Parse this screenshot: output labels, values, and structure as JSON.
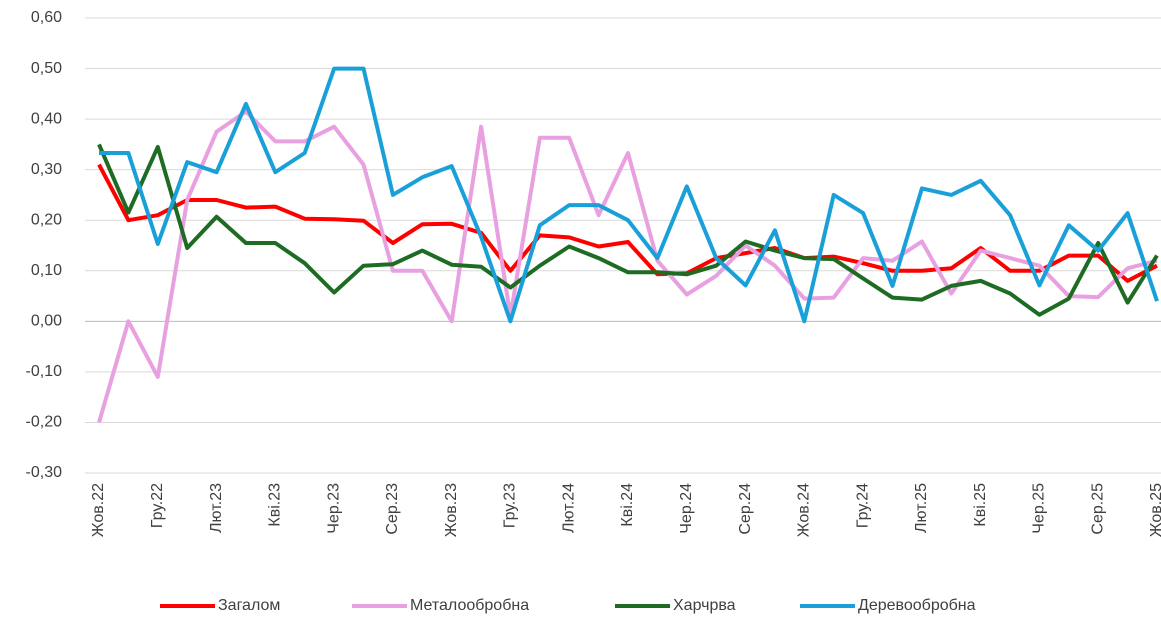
{
  "chart_data": {
    "type": "line",
    "categories": [
      "Жов.22",
      null,
      "Гру.22",
      null,
      "Лют.23",
      null,
      "Кві.23",
      null,
      "Чер.23",
      null,
      "Сер.23",
      null,
      "Жов.23",
      null,
      "Гру.23",
      null,
      "Лют.24",
      null,
      "Кві.24",
      null,
      "Чер.24",
      null,
      "Сер.24",
      null,
      "Жов.24",
      null,
      "Гру.24",
      null,
      "Лют.25",
      null,
      "Кві.25",
      null,
      "Чер.25",
      null,
      "Сер.25",
      null,
      "Жов.25"
    ],
    "series": [
      {
        "name": "Загалом",
        "color": "#ff0000",
        "values": [
          0.31,
          0.2,
          0.21,
          0.24,
          0.24,
          0.225,
          0.227,
          0.203,
          0.202,
          0.199,
          0.155,
          0.192,
          0.193,
          0.175,
          0.1,
          0.17,
          0.166,
          0.148,
          0.157,
          0.093,
          0.095,
          0.125,
          0.135,
          0.145,
          0.125,
          0.128,
          0.115,
          0.1,
          0.1,
          0.105,
          0.145,
          0.1,
          0.1,
          0.13,
          0.13,
          0.08,
          0.11
        ]
      },
      {
        "name": "Металообробна",
        "color": "#e8a0e0",
        "values": [
          -0.2,
          0.0,
          -0.11,
          0.24,
          0.375,
          0.415,
          0.356,
          0.356,
          0.385,
          0.31,
          0.1,
          0.1,
          0.0,
          0.385,
          0.01,
          0.363,
          0.363,
          0.21,
          0.333,
          0.12,
          0.053,
          0.09,
          0.15,
          0.11,
          0.045,
          0.047,
          0.125,
          0.12,
          0.158,
          0.055,
          0.14,
          0.125,
          0.11,
          0.05,
          0.048,
          0.105,
          0.12
        ]
      },
      {
        "name": "Харчрва",
        "color": "#1e6b23",
        "values": [
          0.35,
          0.215,
          0.345,
          0.145,
          0.207,
          0.155,
          0.155,
          0.115,
          0.057,
          0.11,
          0.113,
          0.14,
          0.112,
          0.108,
          0.067,
          0.11,
          0.148,
          0.125,
          0.097,
          0.097,
          0.093,
          0.11,
          0.158,
          0.14,
          0.125,
          0.123,
          0.085,
          0.047,
          0.043,
          0.07,
          0.08,
          0.055,
          0.013,
          0.045,
          0.155,
          0.037,
          0.13
        ]
      },
      {
        "name": "Деревообробна",
        "color": "#1aa0d8",
        "values": [
          0.333,
          0.333,
          0.153,
          0.315,
          0.295,
          0.43,
          0.295,
          0.333,
          0.5,
          0.5,
          0.25,
          0.285,
          0.307,
          0.167,
          0.0,
          0.19,
          0.23,
          0.23,
          0.2,
          0.125,
          0.267,
          0.125,
          0.071,
          0.18,
          0.0,
          0.25,
          0.214,
          0.07,
          0.263,
          0.25,
          0.278,
          0.21,
          0.071,
          0.19,
          0.14,
          0.214,
          0.04
        ]
      }
    ],
    "ylim": [
      -0.3,
      0.6
    ],
    "yticks": [
      {
        "value": -0.3,
        "label": "-0,30"
      },
      {
        "value": -0.2,
        "label": "-0,20"
      },
      {
        "value": -0.1,
        "label": "-0,10"
      },
      {
        "value": 0,
        "label": "0,00"
      },
      {
        "value": 0.1,
        "label": "0,10"
      },
      {
        "value": 0.2,
        "label": "0,20"
      },
      {
        "value": 0.3,
        "label": "0,30"
      },
      {
        "value": 0.4,
        "label": "0,40"
      },
      {
        "value": 0.5,
        "label": "0,50"
      },
      {
        "value": 0.6,
        "label": "0,60"
      }
    ],
    "grid": true,
    "legend": "bottom"
  }
}
